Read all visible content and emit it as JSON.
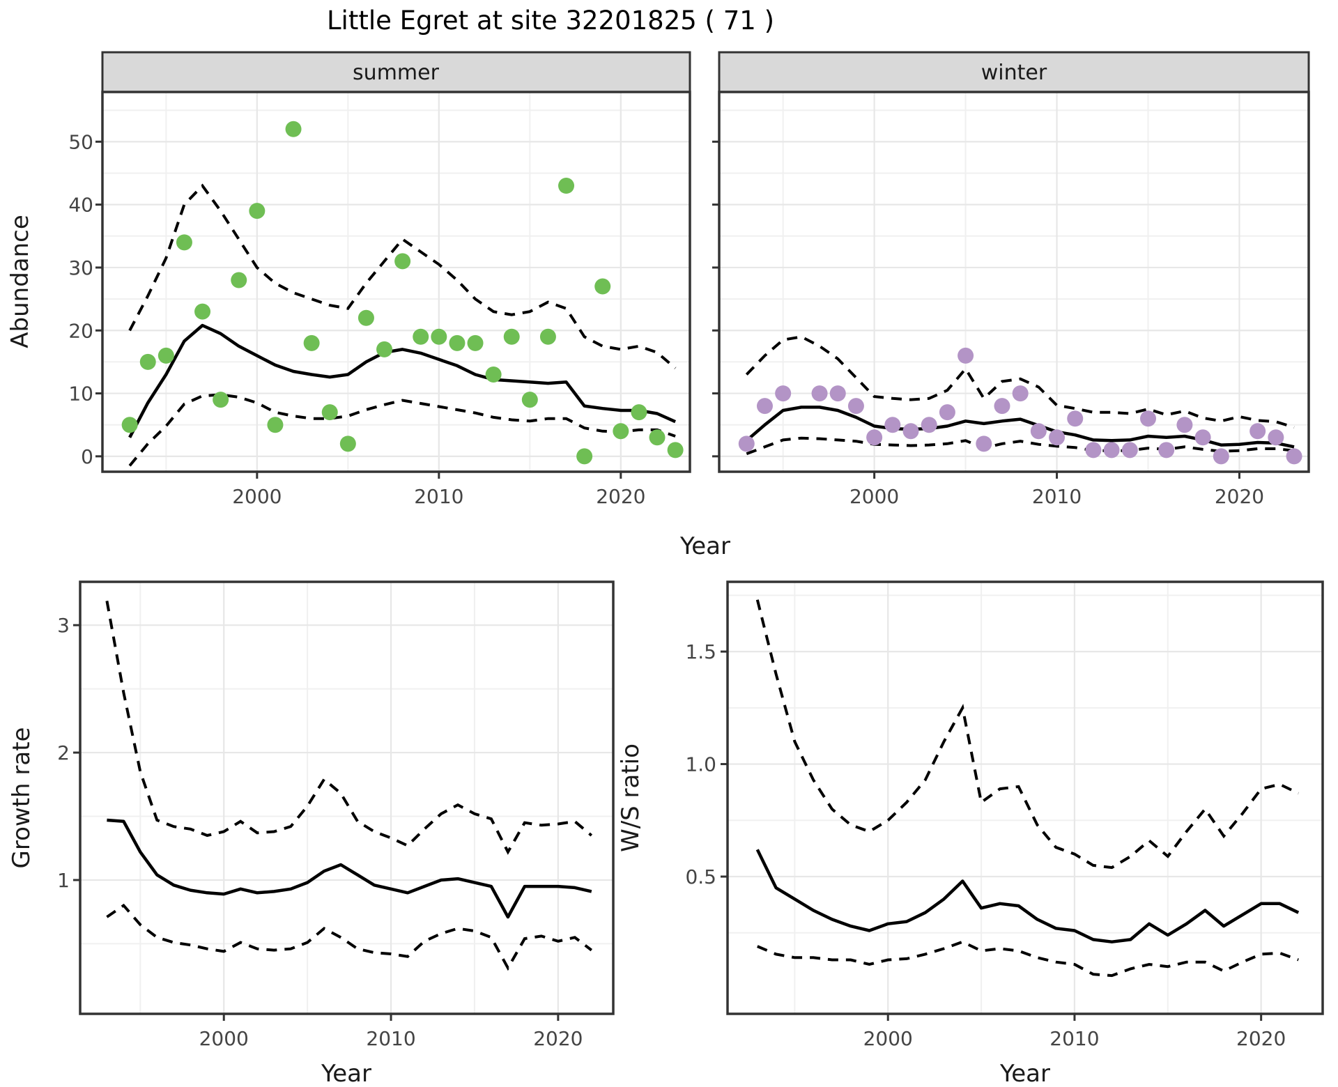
{
  "title": "Little Egret at site 32201825 ( 71 )",
  "facets": {
    "summer": "summer",
    "winter": "winter"
  },
  "axes": {
    "abundance_label": "Abundance",
    "year_label_top": "Year",
    "year_label_growth": "Year",
    "year_label_ws": "Year",
    "growth_label": "Growth rate",
    "ws_label": "W/S ratio"
  },
  "colors": {
    "summer_point": "#6FBE54",
    "winter_point": "#B394C6",
    "line": "#000000",
    "grid_major": "#E7E7E7",
    "grid_minor": "#F0F0F0",
    "panel_border": "#333333",
    "strip_bg": "#D9D9D9",
    "tick_text": "#444444"
  },
  "chart_data": [
    {
      "panel": "abundance-summer",
      "type": "scatter",
      "facet_label": "summer",
      "title": "Little Egret at site 32201825 ( 71 )",
      "xlabel": "Year",
      "ylabel": "Abundance",
      "x": [
        1993,
        1994,
        1995,
        1996,
        1997,
        1998,
        1999,
        2000,
        2001,
        2002,
        2003,
        2004,
        2005,
        2006,
        2007,
        2008,
        2009,
        2010,
        2011,
        2012,
        2013,
        2014,
        2015,
        2016,
        2017,
        2018,
        2019,
        2020,
        2021,
        2022,
        2023
      ],
      "points": [
        5,
        15,
        16,
        34,
        23,
        9,
        28,
        39,
        5,
        52,
        18,
        7,
        2,
        22,
        17,
        31,
        19,
        19,
        18,
        18,
        13,
        19,
        9,
        19,
        43,
        0,
        27,
        4,
        7,
        3,
        1
      ],
      "fit": [
        3.0,
        8.5,
        13.0,
        18.3,
        20.8,
        19.5,
        17.5,
        16.0,
        14.5,
        13.5,
        13.0,
        12.6,
        13.0,
        15.0,
        16.5,
        17.0,
        16.4,
        15.4,
        14.4,
        13.0,
        12.2,
        12.0,
        11.8,
        11.6,
        11.8,
        8.0,
        7.6,
        7.3,
        7.3,
        6.8,
        5.5
      ],
      "upper": [
        20.0,
        25.5,
        31.5,
        40.0,
        43.0,
        39.0,
        34.5,
        30.0,
        27.5,
        26.0,
        25.0,
        24.0,
        23.5,
        27.5,
        31.0,
        34.5,
        32.5,
        30.5,
        28.0,
        25.0,
        23.0,
        22.5,
        23.0,
        24.5,
        23.5,
        19.0,
        17.5,
        17.0,
        17.5,
        16.5,
        14.0
      ],
      "lower": [
        -1.5,
        2.0,
        4.8,
        8.3,
        9.6,
        9.8,
        9.4,
        8.5,
        7.0,
        6.4,
        6.0,
        6.0,
        6.4,
        7.4,
        8.2,
        8.9,
        8.4,
        7.9,
        7.4,
        6.9,
        6.2,
        5.8,
        5.6,
        6.0,
        6.0,
        4.5,
        4.0,
        3.9,
        4.2,
        4.2,
        3.2
      ],
      "xlim": [
        1991.5,
        2023.8
      ],
      "ylim": [
        -2.45,
        57.9
      ],
      "xticks": [
        2000,
        2010,
        2020
      ],
      "xtick_labels": [
        "2000",
        "2010",
        "2020"
      ],
      "xminor": [
        1995,
        2005,
        2015
      ],
      "yticks": [
        0,
        10,
        20,
        30,
        40,
        50
      ],
      "ytick_labels": [
        "0",
        "10",
        "20",
        "30",
        "40",
        "50"
      ],
      "yminor": [
        5,
        15,
        25,
        35,
        45,
        55
      ],
      "grid": true,
      "legend": "none"
    },
    {
      "panel": "abundance-winter",
      "type": "scatter",
      "facet_label": "winter",
      "xlabel": "Year",
      "ylabel": "Abundance",
      "x": [
        1993,
        1994,
        1995,
        1996,
        1997,
        1998,
        1999,
        2000,
        2001,
        2002,
        2003,
        2004,
        2005,
        2006,
        2007,
        2008,
        2009,
        2010,
        2011,
        2012,
        2013,
        2014,
        2015,
        2016,
        2017,
        2018,
        2019,
        2020,
        2021,
        2022,
        2023
      ],
      "points": [
        2,
        8,
        10,
        null,
        10,
        10,
        8,
        3,
        5,
        4,
        5,
        7,
        16,
        2,
        8,
        10,
        4,
        3,
        6,
        1,
        1,
        1,
        6,
        1,
        5,
        3,
        0,
        null,
        4,
        3,
        0
      ],
      "fit": [
        2.5,
        5.0,
        7.3,
        7.8,
        7.8,
        7.3,
        6.2,
        4.8,
        4.4,
        4.3,
        4.4,
        4.8,
        5.6,
        5.2,
        5.6,
        5.9,
        4.9,
        3.9,
        3.4,
        2.6,
        2.5,
        2.6,
        3.2,
        3.0,
        3.2,
        2.6,
        1.8,
        1.9,
        2.2,
        2.1,
        1.5
      ],
      "upper": [
        13.0,
        16.0,
        18.5,
        19.0,
        17.5,
        15.5,
        12.5,
        9.5,
        9.2,
        9.0,
        9.2,
        10.5,
        13.9,
        9.2,
        11.9,
        12.3,
        11.0,
        8.1,
        7.6,
        7.0,
        7.0,
        6.8,
        7.5,
        6.6,
        7.2,
        6.1,
        5.6,
        6.3,
        5.7,
        5.5,
        4.6
      ],
      "lower": [
        0.4,
        1.5,
        2.6,
        2.9,
        2.8,
        2.6,
        2.4,
        1.9,
        1.8,
        1.7,
        1.8,
        2.0,
        2.5,
        1.3,
        2.0,
        2.4,
        1.9,
        1.6,
        1.4,
        0.9,
        0.9,
        0.9,
        1.3,
        1.1,
        1.5,
        1.1,
        0.8,
        0.9,
        1.2,
        1.2,
        0.9
      ],
      "xlim": [
        1991.5,
        2023.8
      ],
      "ylim": [
        -2.45,
        57.9
      ],
      "xticks": [
        2000,
        2010,
        2020
      ],
      "xtick_labels": [
        "2000",
        "2010",
        "2020"
      ],
      "xminor": [
        1995,
        2005,
        2015
      ],
      "yticks": [
        0,
        10,
        20,
        30,
        40,
        50
      ],
      "ytick_labels": [],
      "yminor": [
        5,
        15,
        25,
        35,
        45,
        55
      ],
      "grid": true,
      "legend": "none"
    },
    {
      "panel": "growth-rate",
      "type": "line",
      "facet_label": "",
      "xlabel": "Year",
      "ylabel": "Growth rate",
      "x": [
        1993,
        1994,
        1995,
        1996,
        1997,
        1998,
        1999,
        2000,
        2001,
        2002,
        2003,
        2004,
        2005,
        2006,
        2007,
        2008,
        2009,
        2010,
        2011,
        2012,
        2013,
        2014,
        2015,
        2016,
        2017,
        2018,
        2019,
        2020,
        2021,
        2022
      ],
      "fit": [
        1.47,
        1.46,
        1.22,
        1.04,
        0.96,
        0.92,
        0.9,
        0.89,
        0.93,
        0.9,
        0.91,
        0.93,
        0.98,
        1.07,
        1.12,
        1.04,
        0.96,
        0.93,
        0.9,
        0.95,
        1.0,
        1.01,
        0.98,
        0.95,
        0.71,
        0.95,
        0.95,
        0.95,
        0.94,
        0.91
      ],
      "upper": [
        3.19,
        2.47,
        1.85,
        1.47,
        1.42,
        1.4,
        1.35,
        1.38,
        1.46,
        1.37,
        1.38,
        1.42,
        1.58,
        1.79,
        1.68,
        1.46,
        1.38,
        1.33,
        1.27,
        1.4,
        1.52,
        1.59,
        1.52,
        1.48,
        1.22,
        1.45,
        1.43,
        1.44,
        1.46,
        1.35
      ],
      "lower": [
        0.71,
        0.8,
        0.65,
        0.55,
        0.51,
        0.49,
        0.46,
        0.44,
        0.51,
        0.46,
        0.45,
        0.46,
        0.51,
        0.62,
        0.55,
        0.46,
        0.43,
        0.42,
        0.4,
        0.52,
        0.58,
        0.62,
        0.6,
        0.55,
        0.31,
        0.54,
        0.56,
        0.52,
        0.55,
        0.45
      ],
      "xlim": [
        1991.4,
        2023.3
      ],
      "ylim": [
        -0.05,
        3.34
      ],
      "xticks": [
        2000,
        2010,
        2020
      ],
      "xtick_labels": [
        "2000",
        "2010",
        "2020"
      ],
      "xminor": [
        1995,
        2005,
        2015
      ],
      "yticks": [
        1,
        2,
        3
      ],
      "ytick_labels": [
        "1",
        "2",
        "3"
      ],
      "yminor": [
        0.5,
        1.5,
        2.5
      ],
      "grid": true,
      "legend": "none"
    },
    {
      "panel": "ws-ratio",
      "type": "line",
      "facet_label": "",
      "xlabel": "Year",
      "ylabel": "W/S ratio",
      "x": [
        1993,
        1994,
        1995,
        1996,
        1997,
        1998,
        1999,
        2000,
        2001,
        2002,
        2003,
        2004,
        2005,
        2006,
        2007,
        2008,
        2009,
        2010,
        2011,
        2012,
        2013,
        2014,
        2015,
        2016,
        2017,
        2018,
        2019,
        2020,
        2021,
        2022
      ],
      "fit": [
        0.62,
        0.45,
        0.4,
        0.35,
        0.31,
        0.28,
        0.26,
        0.29,
        0.3,
        0.34,
        0.4,
        0.48,
        0.36,
        0.38,
        0.37,
        0.31,
        0.27,
        0.26,
        0.22,
        0.21,
        0.22,
        0.29,
        0.24,
        0.29,
        0.35,
        0.28,
        0.33,
        0.38,
        0.38,
        0.34
      ],
      "upper": [
        1.73,
        1.4,
        1.1,
        0.93,
        0.8,
        0.73,
        0.7,
        0.75,
        0.83,
        0.93,
        1.1,
        1.25,
        0.83,
        0.89,
        0.9,
        0.73,
        0.63,
        0.6,
        0.55,
        0.54,
        0.59,
        0.66,
        0.59,
        0.7,
        0.8,
        0.68,
        0.78,
        0.89,
        0.91,
        0.87
      ],
      "lower": [
        0.19,
        0.155,
        0.14,
        0.14,
        0.13,
        0.13,
        0.11,
        0.13,
        0.135,
        0.155,
        0.18,
        0.21,
        0.17,
        0.18,
        0.17,
        0.14,
        0.12,
        0.11,
        0.066,
        0.06,
        0.09,
        0.11,
        0.1,
        0.12,
        0.12,
        0.08,
        0.12,
        0.155,
        0.16,
        0.13
      ],
      "xlim": [
        1991.4,
        2023.3
      ],
      "ylim": [
        -0.11,
        1.81
      ],
      "xticks": [
        2000,
        2010,
        2020
      ],
      "xtick_labels": [
        "2000",
        "2010",
        "2020"
      ],
      "xminor": [
        1995,
        2005,
        2015
      ],
      "yticks": [
        0.5,
        1.0,
        1.5
      ],
      "ytick_labels": [
        "0.5",
        "1.0",
        "1.5"
      ],
      "yminor": [
        0.25,
        0.75,
        1.25,
        1.75
      ],
      "grid": true,
      "legend": "none"
    }
  ]
}
